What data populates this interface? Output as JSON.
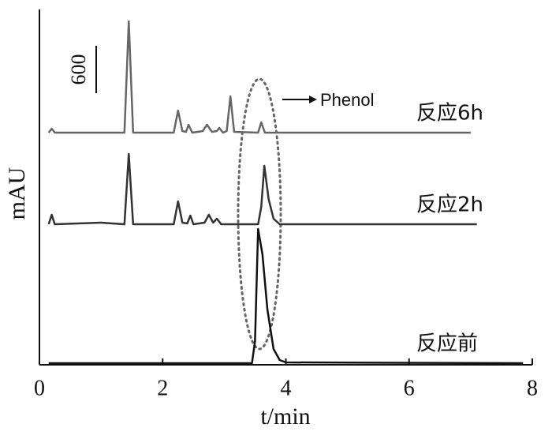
{
  "chart_data": {
    "type": "line",
    "xlabel": "t/min",
    "ylabel": "mAU",
    "xlim": [
      0,
      8
    ],
    "xticks": [
      0,
      2,
      4,
      6,
      8
    ],
    "ylim": [
      0,
      4500
    ],
    "scale_bar": 600,
    "annotation": "Phenol",
    "series": [
      {
        "name": "反应6h",
        "color": "#666666",
        "x": [
          0.15,
          0.2,
          0.25,
          1.38,
          1.45,
          1.52,
          2.18,
          2.25,
          2.32,
          2.38,
          2.42,
          2.48,
          2.65,
          2.72,
          2.8,
          2.88,
          2.92,
          2.98,
          3.04,
          3.1,
          3.16,
          3.55,
          3.6,
          3.66,
          7.0
        ],
        "values": [
          2940,
          2990,
          2940,
          2940,
          4350,
          2940,
          2940,
          3220,
          2960,
          2950,
          3040,
          2940,
          2960,
          3040,
          2950,
          2960,
          3000,
          2940,
          2960,
          3400,
          2950,
          2940,
          3070,
          2940,
          2940
        ]
      },
      {
        "name": "反应2h",
        "color": "#333333",
        "x": [
          0.15,
          0.2,
          0.25,
          1.0,
          1.38,
          1.45,
          1.52,
          2.18,
          2.25,
          2.32,
          2.4,
          2.45,
          2.5,
          2.68,
          2.75,
          2.82,
          2.88,
          2.95,
          3.55,
          3.6,
          3.65,
          3.72,
          3.8,
          3.9,
          7.1
        ],
        "values": [
          1780,
          1900,
          1780,
          1800,
          1780,
          2670,
          1780,
          1780,
          2070,
          1800,
          1790,
          1890,
          1780,
          1800,
          1900,
          1800,
          1850,
          1780,
          1780,
          2000,
          2520,
          2100,
          1850,
          1780,
          1780
        ]
      },
      {
        "name": "反应前",
        "color": "#111111",
        "x": [
          0.15,
          3.45,
          3.5,
          3.55,
          3.62,
          3.7,
          3.8,
          3.9,
          4.0,
          7.85
        ],
        "values": [
          20,
          20,
          300,
          1720,
          1400,
          700,
          200,
          60,
          30,
          20
        ]
      }
    ]
  }
}
